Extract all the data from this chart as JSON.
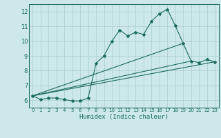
{
  "xlabel": "Humidex (Indice chaleur)",
  "background_color": "#cce8e8",
  "grid_color": "#aacece",
  "line_color": "#1a6b5a",
  "xlim": [
    -0.5,
    23.5
  ],
  "ylim": [
    5.5,
    12.5
  ],
  "xticks": [
    0,
    1,
    2,
    3,
    4,
    5,
    6,
    7,
    8,
    9,
    10,
    11,
    12,
    13,
    14,
    15,
    16,
    17,
    18,
    19,
    20,
    21,
    22,
    23
  ],
  "yticks": [
    6,
    7,
    8,
    9,
    10,
    11,
    12
  ],
  "main_x": [
    0,
    1,
    2,
    3,
    4,
    5,
    6,
    7,
    8,
    9,
    10,
    11,
    12,
    13,
    14,
    15,
    16,
    17,
    18,
    19,
    20,
    21,
    22,
    23
  ],
  "main_y": [
    6.3,
    6.05,
    6.15,
    6.15,
    6.05,
    5.95,
    5.95,
    6.15,
    8.5,
    9.0,
    10.0,
    10.75,
    10.35,
    10.6,
    10.45,
    11.35,
    11.85,
    12.15,
    11.05,
    9.85,
    8.65,
    8.55,
    8.75,
    8.6
  ],
  "line1_x": [
    0,
    23
  ],
  "line1_y": [
    6.3,
    8.6
  ],
  "line2_x": [
    0,
    19
  ],
  "line2_y": [
    6.3,
    9.85
  ],
  "line3_x": [
    0,
    20
  ],
  "line3_y": [
    6.3,
    8.65
  ]
}
